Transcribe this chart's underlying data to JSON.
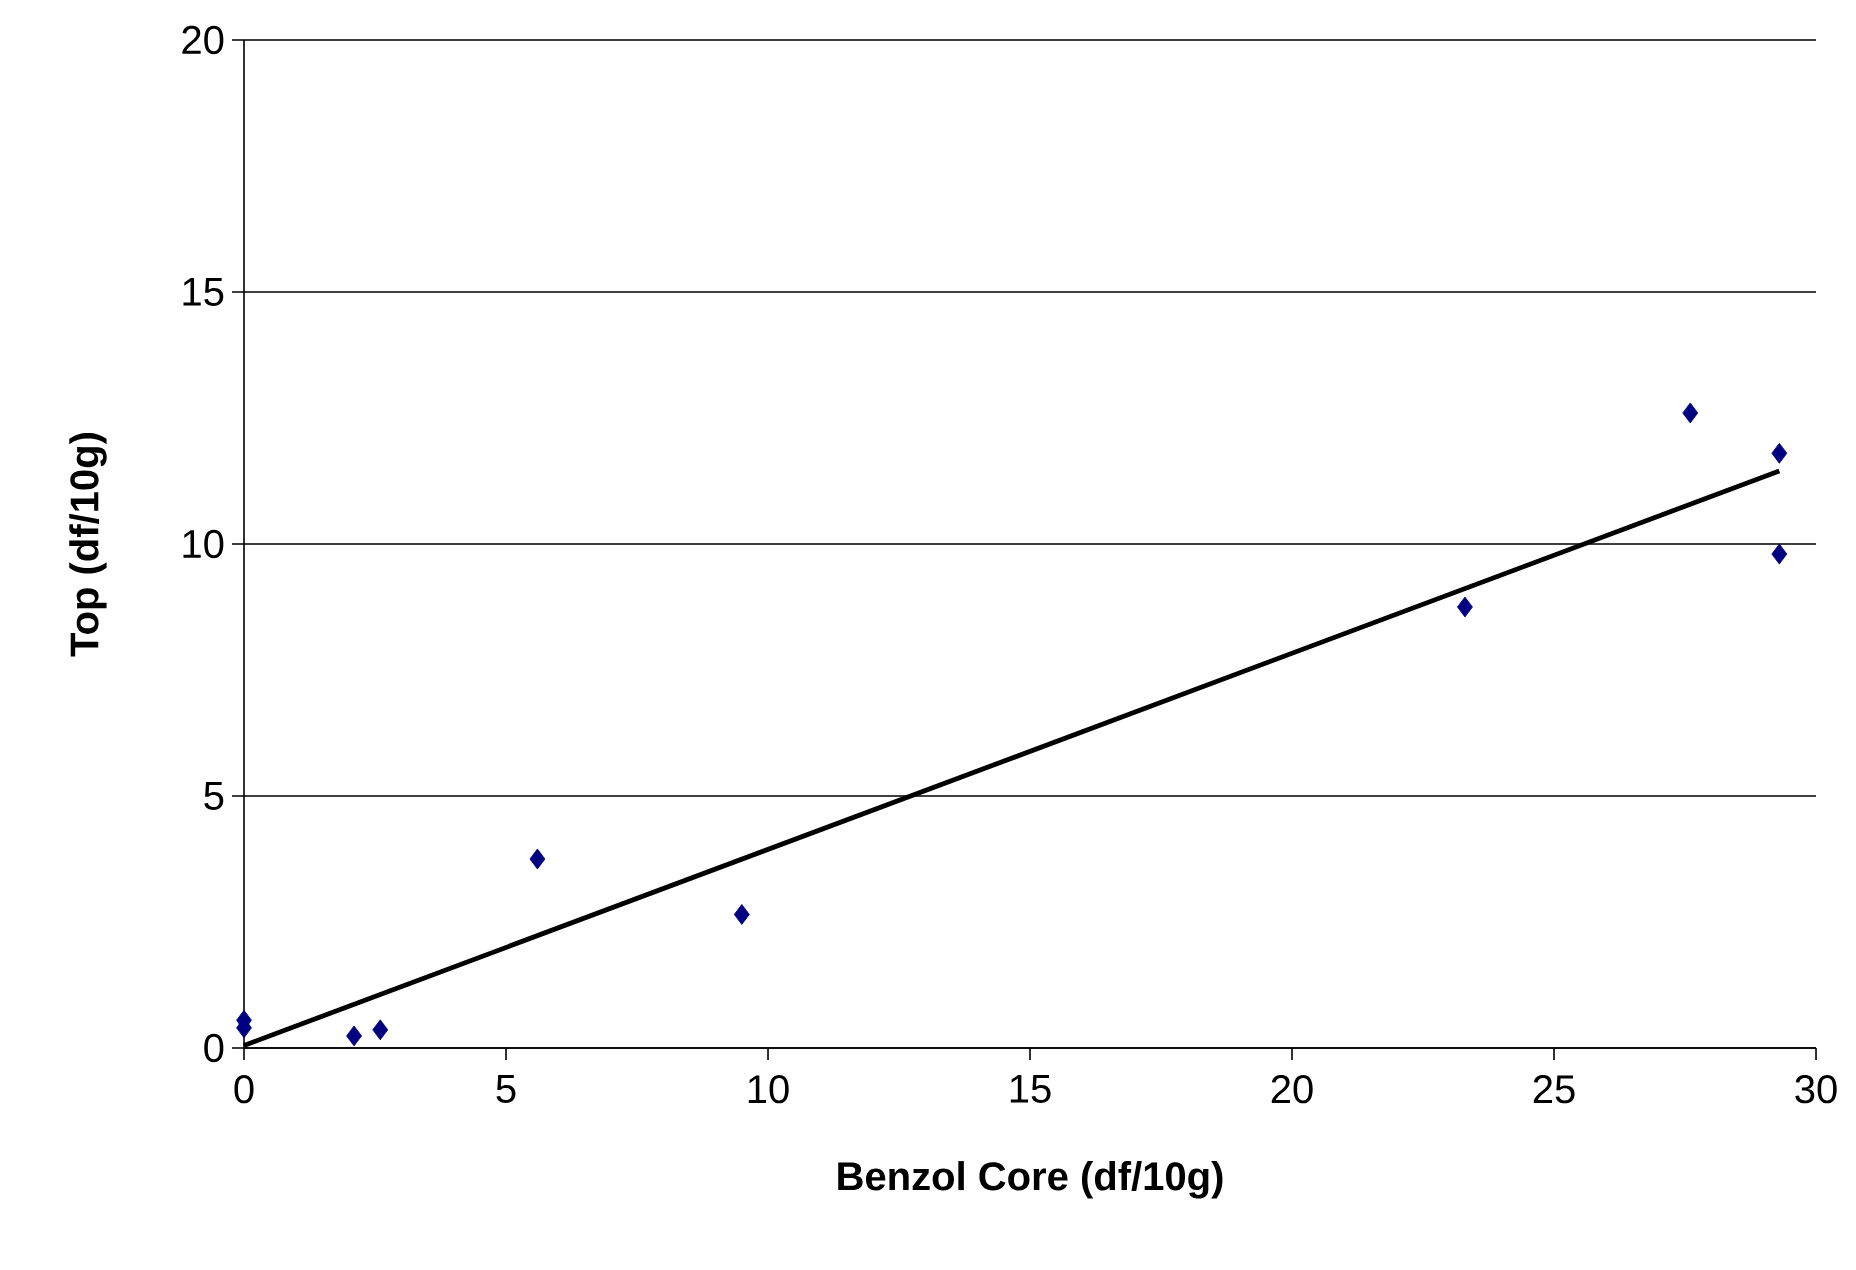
{
  "chart_data": {
    "type": "scatter",
    "xlabel": "Benzol Core (df/10g)",
    "ylabel": "Top (df/10g)",
    "xlim": [
      0,
      30
    ],
    "ylim": [
      0,
      20
    ],
    "xticks": [
      0,
      5,
      10,
      15,
      20,
      25,
      30
    ],
    "yticks": [
      0,
      5,
      10,
      15,
      20
    ],
    "grid": "y",
    "series": [
      {
        "color": "#000080",
        "marker": "diamond",
        "x": [
          0,
          0,
          2.1,
          2.6,
          5.6,
          9.5,
          23.3,
          27.6,
          29.3,
          29.3
        ],
        "values": [
          0.55,
          0.4,
          0.24,
          0.36,
          3.75,
          2.65,
          8.75,
          12.6,
          11.8,
          9.8
        ]
      },
      {
        "type": "line",
        "color": "#000000",
        "marker": "none",
        "line_style": "solid",
        "x": [
          0,
          29.3
        ],
        "values": [
          0.05,
          11.45
        ]
      }
    ]
  }
}
